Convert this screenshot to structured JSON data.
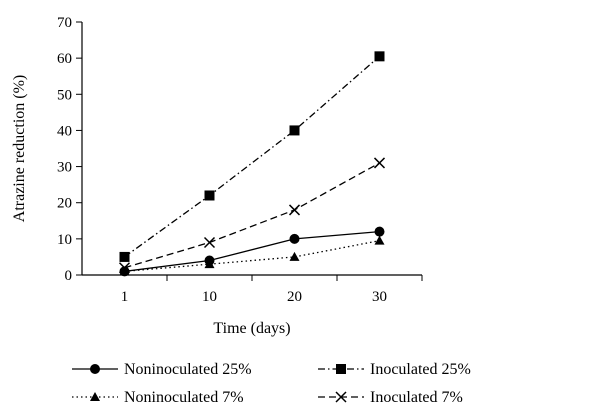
{
  "chart_data": {
    "type": "line",
    "xlabel": "Time (days)",
    "ylabel": "Atrazine reduction (%)",
    "categories": [
      "1",
      "10",
      "20",
      "30"
    ],
    "ylim": [
      0,
      70
    ],
    "yticks": [
      0,
      10,
      20,
      30,
      40,
      50,
      60,
      70
    ],
    "grid": false,
    "legend_position": "bottom",
    "series": [
      {
        "name": "Noninoculated 25%",
        "values": [
          1,
          4,
          10,
          12
        ],
        "line_style": "solid",
        "marker": "circle",
        "color": "#000000"
      },
      {
        "name": "Inoculated 25%",
        "values": [
          5,
          22,
          40,
          60.5
        ],
        "line_style": "dash-dot",
        "marker": "square",
        "color": "#000000"
      },
      {
        "name": "Noninoculated 7%",
        "values": [
          1,
          3,
          5,
          9.5
        ],
        "line_style": "dotted",
        "marker": "triangle",
        "color": "#000000"
      },
      {
        "name": "Inoculated 7%",
        "values": [
          2,
          9,
          18,
          31
        ],
        "line_style": "dashed",
        "marker": "x",
        "color": "#000000"
      }
    ]
  }
}
